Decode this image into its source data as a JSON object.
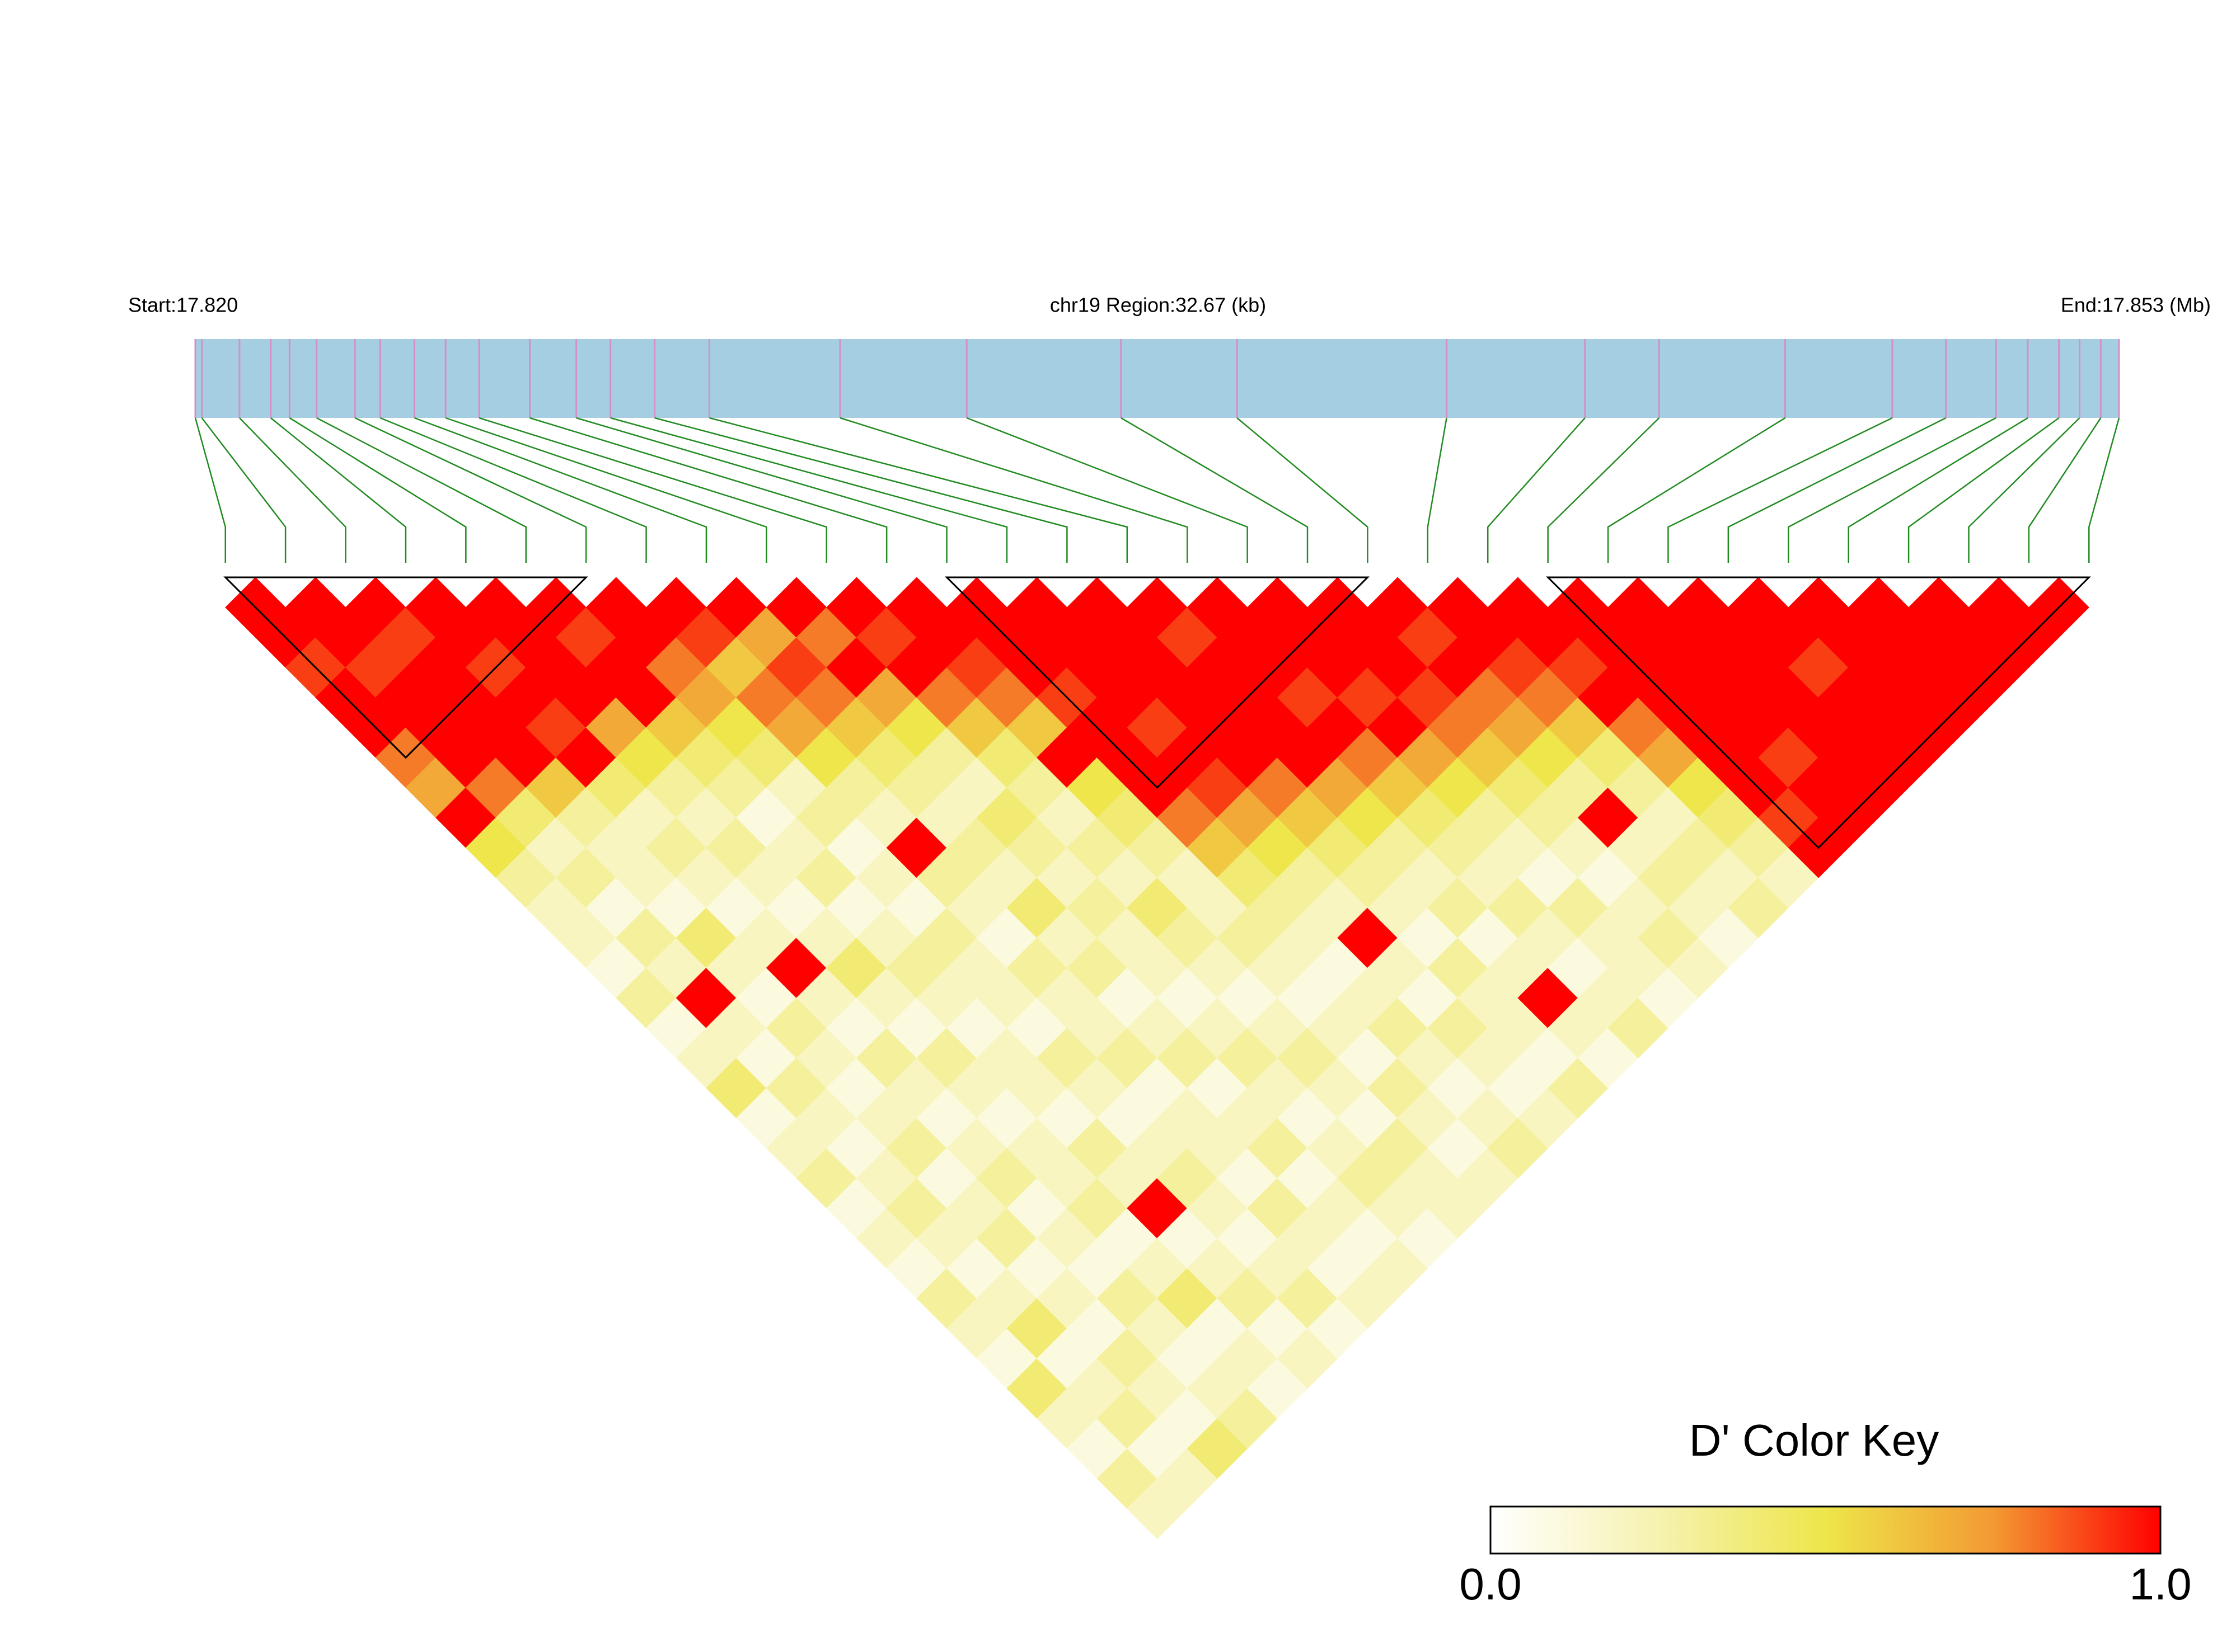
{
  "chart_data": {
    "type": "ld_heatmap",
    "title_left": "Start:17.820",
    "title_center": "chr19 Region:32.67 (kb)",
    "title_right": "End:17.853 (Mb)",
    "legend_title": "D' Color Key",
    "positions": [
      17.8203,
      17.82041,
      17.82105,
      17.82158,
      17.8219,
      17.82236,
      17.82301,
      17.82344,
      17.82402,
      17.82455,
      17.82512,
      17.82598,
      17.82677,
      17.82735,
      17.8281,
      17.82903,
      17.83125,
      17.8334,
      17.83602,
      17.83799,
      17.84155,
      17.8439,
      17.84516,
      17.8473,
      17.84912,
      17.85003,
      17.85088,
      17.85142,
      17.85195,
      17.8523,
      17.85266,
      17.85297
    ],
    "dprime": [
      [
        1,
        1,
        0.9,
        1,
        1,
        0.8,
        0.7,
        1,
        0.5,
        0.3,
        0.2,
        0.2,
        0.1,
        0.3,
        0.1,
        0.2,
        0.4,
        0.1,
        0.2,
        0.3,
        0.1,
        0.2,
        0.1,
        0.3,
        0.2,
        0.1,
        0.4,
        0.2,
        0.1,
        0.3,
        0.2
      ],
      [
        1,
        1,
        0.9,
        1,
        1,
        1,
        0.8,
        0.4,
        0.2,
        0.3,
        0.1,
        0.3,
        0.2,
        1,
        0.2,
        0.1,
        0.3,
        0.2,
        0.1,
        0.2,
        0.3,
        0.2,
        0.1,
        0.2,
        0.4,
        0.1,
        0.2,
        0.3,
        0.1,
        0.2
      ],
      [
        1,
        0.9,
        1,
        1,
        1,
        1,
        0.6,
        0.3,
        0.2,
        0.2,
        0.1,
        0.4,
        0.2,
        0.1,
        0.3,
        0.2,
        0.1,
        0.2,
        0.3,
        0.1,
        0.2,
        0.3,
        0.1,
        0.2,
        0.1,
        0.3,
        0.2,
        0.1,
        0.4
      ],
      [
        1,
        1,
        0.9,
        1,
        0.9,
        1,
        0.4,
        0.2,
        0.3,
        0.2,
        0.1,
        0.2,
        1,
        0.2,
        0.1,
        0.3,
        0.2,
        0.1,
        0.2,
        0.3,
        0.1,
        0.2,
        0.1,
        0.3,
        0.2,
        0.1,
        0.2,
        0.3
      ],
      [
        1,
        1,
        1,
        1,
        0.7,
        0.5,
        0.3,
        0.2,
        0.3,
        0.2,
        0.1,
        0.2,
        0.4,
        0.2,
        0.1,
        0.3,
        0.2,
        0.1,
        0.2,
        0.2,
        0.3,
        0.1,
        0.2,
        0.4,
        0.1,
        0.2,
        0.1
      ],
      [
        1,
        0.9,
        1,
        1,
        0.6,
        0.4,
        0.3,
        0.1,
        0.2,
        0.3,
        0.1,
        0.2,
        0.3,
        0.2,
        0.1,
        0.2,
        0.2,
        0.1,
        0.3,
        0.2,
        1,
        0.1,
        0.2,
        0.3,
        0.1,
        0.2
      ],
      [
        1,
        1,
        0.8,
        0.7,
        0.5,
        0.4,
        0.2,
        0.3,
        0.1,
        0.2,
        0.1,
        0.3,
        0.2,
        0.2,
        0.1,
        0.3,
        0.2,
        0.1,
        0.2,
        0.3,
        0.2,
        0.1,
        0.2,
        0.3,
        0.1
      ],
      [
        1,
        0.9,
        0.6,
        0.8,
        0.7,
        0.5,
        0.3,
        0.2,
        1,
        0.3,
        0.2,
        0.1,
        0.3,
        0.2,
        0.2,
        0.3,
        0.1,
        0.2,
        0.2,
        0.1,
        0.3,
        0.2,
        0.1,
        0.2
      ],
      [
        1,
        0.7,
        0.9,
        0.8,
        0.6,
        0.4,
        0.3,
        0.2,
        0.3,
        0.2,
        0.4,
        0.2,
        0.3,
        0.1,
        0.2,
        0.3,
        0.1,
        0.2,
        0.3,
        0.1,
        0.2,
        0.1,
        0.2
      ],
      [
        1,
        0.8,
        1,
        0.7,
        0.5,
        0.3,
        0.2,
        0.4,
        0.3,
        0.2,
        0.3,
        0.2,
        0.2,
        0.1,
        0.2,
        0.3,
        0.2,
        0.1,
        0.2,
        0.3,
        0.2,
        0.1
      ],
      [
        1,
        0.9,
        1,
        0.8,
        0.6,
        0.4,
        0.3,
        0.2,
        0.3,
        0.2,
        0.4,
        0.3,
        0.2,
        0.1,
        0.2,
        0.3,
        0.2,
        0.1,
        0.3,
        0.2,
        0.2
      ],
      [
        1,
        1,
        0.9,
        0.8,
        0.6,
        1,
        0.5,
        0.4,
        0.3,
        0.2,
        0.2,
        0.3,
        0.2,
        0.1,
        0.2,
        0.1,
        0.3,
        0.2,
        0.1,
        0.2
      ],
      [
        1,
        1,
        1,
        0.9,
        1,
        1,
        1,
        0.8,
        0.6,
        0.4,
        0.3,
        0.2,
        0.1,
        0.2,
        0.3,
        0.2,
        0.1,
        0.2,
        0.3
      ],
      [
        1,
        1,
        1,
        1,
        0.9,
        1,
        0.9,
        0.7,
        0.5,
        0.3,
        0.2,
        1,
        0.2,
        0.1,
        0.3,
        0.2,
        0.1,
        0.2
      ],
      [
        1,
        1,
        1,
        1,
        1,
        1,
        0.8,
        0.6,
        0.4,
        0.3,
        0.2,
        0.1,
        0.3,
        0.2,
        0.2,
        0.1,
        0.3
      ],
      [
        1,
        0.9,
        1,
        1,
        1,
        1,
        0.7,
        0.5,
        0.3,
        0.2,
        0.3,
        0.1,
        0.2,
        1,
        0.2,
        0.1
      ],
      [
        1,
        1,
        1,
        0.9,
        1,
        0.8,
        0.6,
        0.4,
        0.3,
        0.2,
        0.3,
        0.2,
        0.1,
        0.2,
        0.3
      ],
      [
        1,
        1,
        1,
        0.9,
        1,
        0.7,
        0.5,
        0.3,
        0.2,
        0.1,
        0.3,
        0.2,
        0.2,
        0.1
      ],
      [
        1,
        1,
        1,
        0.9,
        0.8,
        0.6,
        0.4,
        0.3,
        0.2,
        0.1,
        0.2,
        0.3,
        0.2
      ],
      [
        1,
        0.9,
        1,
        0.8,
        0.7,
        0.5,
        0.3,
        1,
        0.2,
        0.3,
        0.2,
        0.1
      ],
      [
        1,
        1,
        0.9,
        0.8,
        0.6,
        0.4,
        0.3,
        0.2,
        0.3,
        0.2,
        0.3
      ],
      [
        1,
        1,
        0.9,
        1,
        0.8,
        0.7,
        0.5,
        0.4,
        0.3,
        0.2
      ],
      [
        1,
        1,
        1,
        1,
        1,
        1,
        1,
        0.9,
        1
      ],
      [
        1,
        1,
        1,
        1,
        1,
        0.9,
        1,
        1
      ],
      [
        1,
        1,
        1,
        1,
        1,
        1,
        1
      ],
      [
        1,
        1,
        0.9,
        1,
        1,
        1
      ],
      [
        1,
        1,
        1,
        1,
        1
      ],
      [
        1,
        1,
        1,
        1
      ],
      [
        1,
        1,
        1
      ],
      [
        1,
        1
      ],
      [
        1
      ]
    ],
    "blocks": [
      [
        0,
        6
      ],
      [
        12,
        19
      ],
      [
        22,
        31
      ]
    ],
    "colors": [
      "#ffffff",
      "#f6f2b0",
      "#eee64a",
      "#f39a33",
      "#ff0000"
    ],
    "bar_color": "#a6cee3",
    "tick_color": "#d58fc4",
    "connector_color": "#228b22",
    "colorbar_ticks": [
      {
        "value": 0,
        "label": "0.0"
      },
      {
        "value": 1,
        "label": "1.0"
      }
    ]
  }
}
